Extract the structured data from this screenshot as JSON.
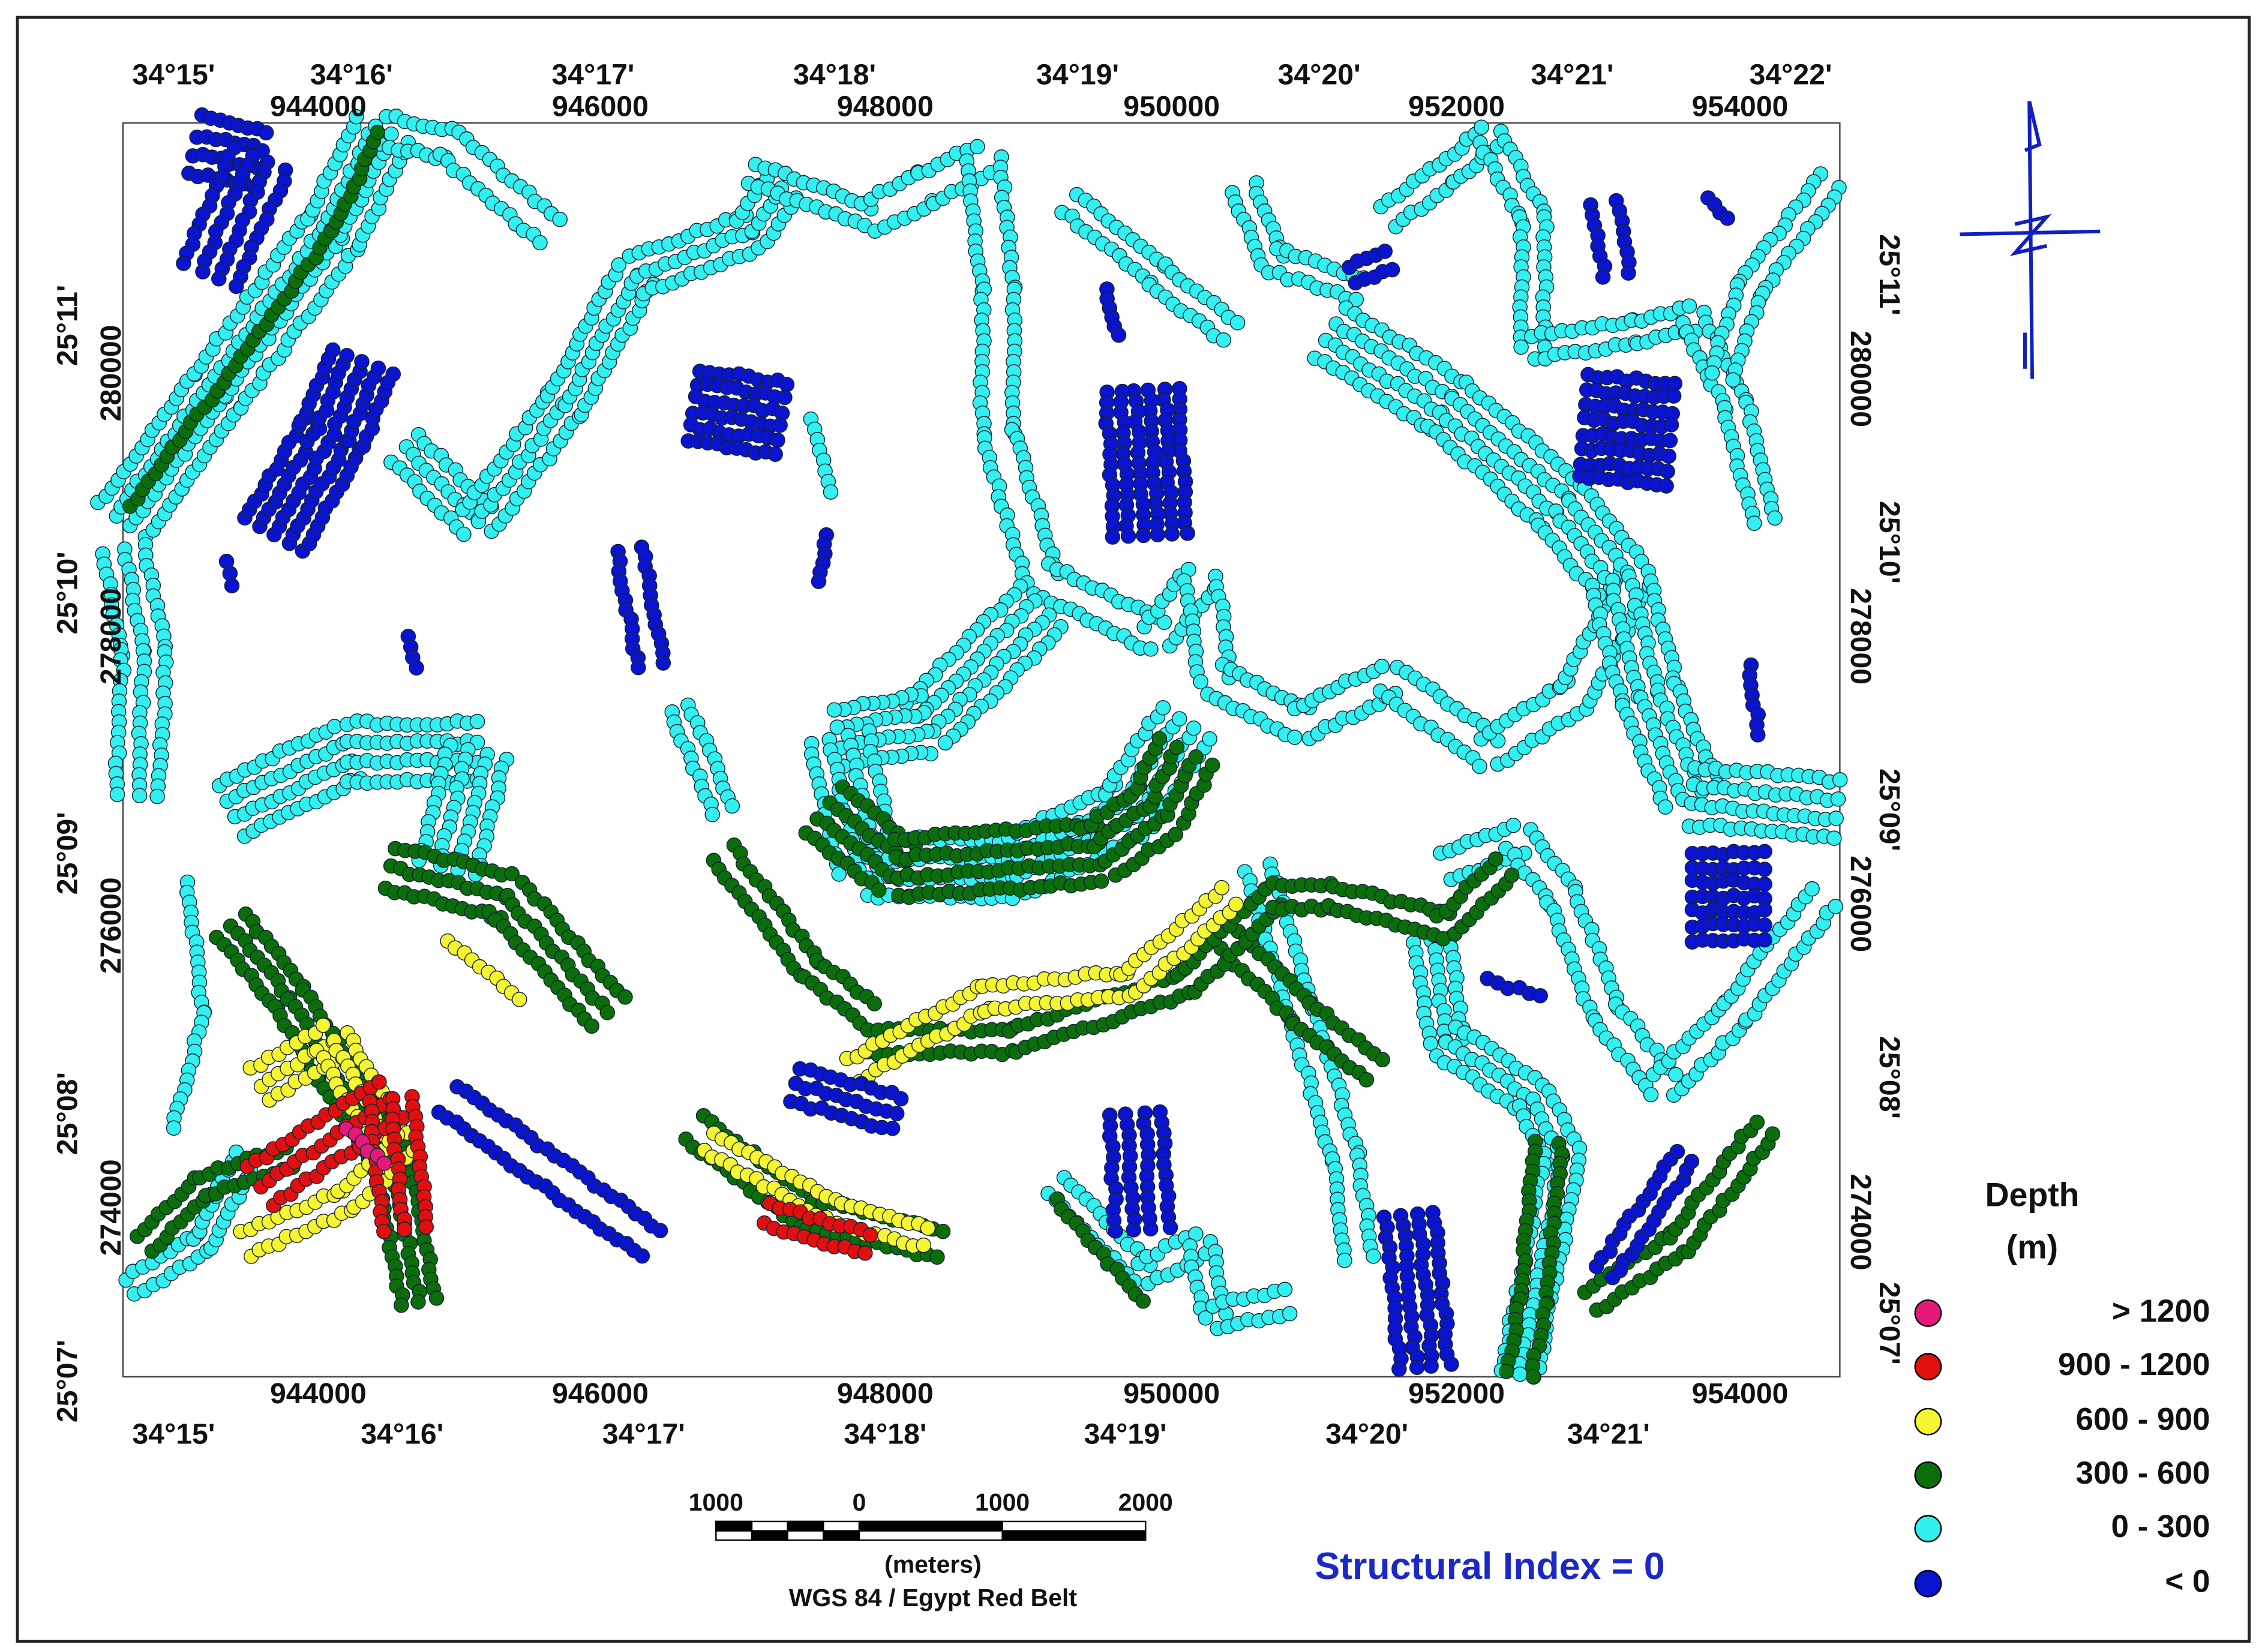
{
  "map": {
    "top_longitude_labels": [
      "34°15'",
      "34°16'",
      "34°17'",
      "34°18'",
      "34°19'",
      "34°20'",
      "34°21'",
      "34°22'"
    ],
    "top_easting_labels": [
      "944000",
      "946000",
      "948000",
      "950000",
      "952000",
      "954000"
    ],
    "bottom_easting_labels": [
      "944000",
      "946000",
      "948000",
      "950000",
      "952000",
      "954000"
    ],
    "bottom_longitude_labels": [
      "34°15'",
      "34°16'",
      "34°17'",
      "34°18'",
      "34°19'",
      "34°20'",
      "34°21'"
    ],
    "left_labels": [
      "25°11'",
      "280000",
      "25°10'",
      "278000",
      "25°09'",
      "276000",
      "25°08'",
      "274000",
      "25°07'"
    ],
    "right_labels": [
      "25°11'",
      "280000",
      "25°10'",
      "278000",
      "25°09'",
      "276000",
      "25°08'",
      "274000",
      "25°07'"
    ],
    "legend": {
      "title": "Depth",
      "unit": "(m)",
      "items": [
        {
          "label": ">  1200",
          "color": "#e5197a"
        },
        {
          "label": "900  -  1200",
          "color": "#e01010"
        },
        {
          "label": "600  -  900",
          "color": "#f5f532"
        },
        {
          "label": "300  -  600",
          "color": "#0b6e0b"
        },
        {
          "label": "0  -  300",
          "color": "#33f0f0"
        },
        {
          "label": "<  0",
          "color": "#0a14d0"
        }
      ]
    },
    "scale_bar": {
      "labels": [
        "1000",
        "0",
        "1000",
        "2000"
      ],
      "unit": "(meters)",
      "projection": "WGS 84 / Egypt Red Belt"
    },
    "annotation": "Structural Index = 0"
  }
}
